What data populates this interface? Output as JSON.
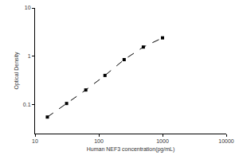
{
  "chart_data": {
    "type": "line",
    "x_label": "Human NEF3 concentration(pg/mL)",
    "y_label": "Optical Density",
    "x": [
      15.6,
      31.25,
      62.5,
      125,
      250,
      500,
      1000
    ],
    "values": [
      0.055,
      0.105,
      0.2,
      0.4,
      0.85,
      1.55,
      2.4
    ],
    "color": "#000000",
    "marker": "square",
    "line_style": "dash",
    "log": true,
    "xlim": [
      10,
      10000
    ],
    "xticks": [
      10,
      100,
      1000,
      10000
    ],
    "ylim": [
      0.025,
      10
    ],
    "yticks": [
      0.1,
      1,
      10
    ],
    "grid": false
  }
}
